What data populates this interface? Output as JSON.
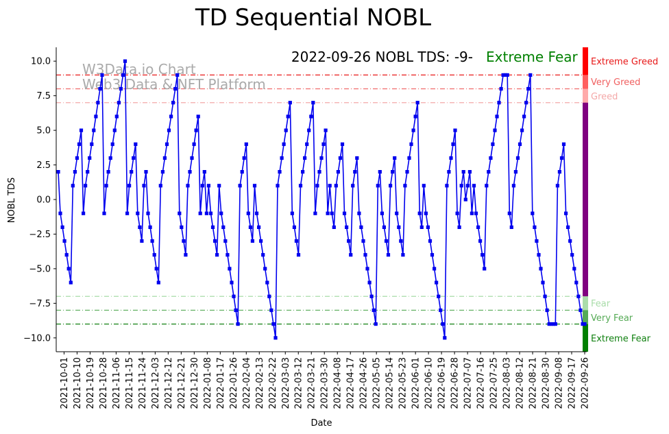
{
  "chart_data": {
    "type": "line",
    "title": "TD Sequential NOBL",
    "xlabel": "Date",
    "ylabel": "NOBL TDS",
    "ylim": [
      -11,
      11
    ],
    "yticks": [
      10.0,
      7.5,
      5.0,
      2.5,
      0.0,
      -2.5,
      -5.0,
      -7.5,
      -10.0
    ],
    "ytick_labels": [
      "10.0",
      "7.5",
      "5.0",
      "2.5",
      "0.0",
      "−2.5",
      "−5.0",
      "−7.5",
      "−10.0"
    ],
    "start_date": "2021-09-27",
    "end_date": "2022-09-26",
    "xtick_labels": [
      "2021-10-01",
      "2021-10-10",
      "2021-10-19",
      "2021-10-28",
      "2021-11-06",
      "2021-11-15",
      "2021-11-24",
      "2021-12-03",
      "2021-12-12",
      "2021-12-21",
      "2021-12-30",
      "2022-01-08",
      "2022-01-17",
      "2022-01-26",
      "2022-02-04",
      "2022-02-13",
      "2022-02-22",
      "2022-03-03",
      "2022-03-12",
      "2022-03-21",
      "2022-03-30",
      "2022-04-08",
      "2022-04-17",
      "2022-04-26",
      "2022-05-05",
      "2022-05-14",
      "2022-05-23",
      "2022-06-01",
      "2022-06-10",
      "2022-06-19",
      "2022-06-28",
      "2022-07-07",
      "2022-07-16",
      "2022-07-25",
      "2022-08-03",
      "2022-08-12",
      "2022-08-21",
      "2022-08-30",
      "2022-09-08",
      "2022-09-17",
      "2022-09-26"
    ],
    "series": [
      {
        "name": "NOBL TDS",
        "color": "#0000ee",
        "values": [
          2,
          -1,
          -2,
          -3,
          -4,
          -5,
          -6,
          1,
          2,
          3,
          4,
          5,
          -1,
          1,
          2,
          3,
          4,
          5,
          6,
          7,
          8,
          9,
          -1,
          1,
          2,
          3,
          4,
          5,
          6,
          7,
          8,
          9,
          10,
          -1,
          1,
          2,
          3,
          4,
          -1,
          -2,
          -3,
          1,
          2,
          -1,
          -2,
          -3,
          -4,
          -5,
          -6,
          1,
          2,
          3,
          4,
          5,
          6,
          7,
          8,
          9,
          -1,
          -2,
          -3,
          -4,
          1,
          2,
          3,
          4,
          5,
          6,
          -1,
          1,
          2,
          -1,
          1,
          -1,
          -2,
          -3,
          -4,
          1,
          -1,
          -2,
          -3,
          -4,
          -5,
          -6,
          -7,
          -8,
          -9,
          1,
          2,
          3,
          4,
          -1,
          -2,
          -3,
          1,
          -1,
          -2,
          -3,
          -4,
          -5,
          -6,
          -7,
          -8,
          -9,
          -10,
          1,
          2,
          3,
          4,
          5,
          6,
          7,
          -1,
          -2,
          -3,
          -4,
          1,
          2,
          3,
          4,
          5,
          6,
          7,
          -1,
          1,
          2,
          3,
          4,
          5,
          -1,
          1,
          -1,
          -2,
          1,
          2,
          3,
          4,
          -1,
          -2,
          -3,
          -4,
          1,
          2,
          3,
          -1,
          -2,
          -3,
          -4,
          -5,
          -6,
          -7,
          -8,
          -9,
          1,
          2,
          -1,
          -2,
          -3,
          -4,
          1,
          2,
          3,
          -1,
          -2,
          -3,
          -4,
          1,
          2,
          3,
          4,
          5,
          6,
          7,
          -1,
          -2,
          1,
          -1,
          -2,
          -3,
          -4,
          -5,
          -6,
          -7,
          -8,
          -9,
          -10,
          1,
          2,
          3,
          4,
          5,
          -1,
          -2,
          1,
          2,
          0,
          1,
          2,
          -1,
          1,
          -1,
          -2,
          -3,
          -4,
          -5,
          1,
          2,
          3,
          4,
          5,
          6,
          7,
          8,
          9,
          9,
          9,
          -1,
          -2,
          1,
          2,
          3,
          4,
          5,
          6,
          7,
          8,
          9,
          -1,
          -2,
          -3,
          -4,
          -5,
          -6,
          -7,
          -8,
          -9,
          -9,
          -9,
          -9,
          1,
          2,
          3,
          4,
          -1,
          -2,
          -3,
          -4,
          -5,
          -6,
          -7,
          -8,
          -9,
          -9
        ]
      }
    ],
    "reference_lines": [
      {
        "name": "Extreme Greed",
        "value": 9,
        "color": "#e81818"
      },
      {
        "name": "Very Greed",
        "value": 8,
        "color": "#f06060"
      },
      {
        "name": "Greed",
        "value": 7,
        "color": "#f4a8a8"
      },
      {
        "name": "Fear",
        "value": -7,
        "color": "#a8dca8"
      },
      {
        "name": "Very Fear",
        "value": -8,
        "color": "#55aa55"
      },
      {
        "name": "Extreme Fear",
        "value": -9,
        "color": "#108010"
      }
    ],
    "side_bar": [
      {
        "from": 9,
        "to": 11,
        "color": "#ff0000"
      },
      {
        "from": 8,
        "to": 9,
        "color": "#ff6060"
      },
      {
        "from": 7,
        "to": 8,
        "color": "#ffaaaa"
      },
      {
        "from": -7,
        "to": 7,
        "color": "#800080"
      },
      {
        "from": -8,
        "to": -7,
        "color": "#aaddaa"
      },
      {
        "from": -9,
        "to": -8,
        "color": "#55aa55"
      },
      {
        "from": -11,
        "to": -9,
        "color": "#008000"
      }
    ]
  },
  "annotations": {
    "status_prefix": "2022-09-26 NOBL TDS: -9-",
    "status_level": "Extreme Fear",
    "status_level_color": "#008000",
    "watermark_line1": "W3Data.io Chart",
    "watermark_line2": "Web3 Data & NFT Platform"
  }
}
